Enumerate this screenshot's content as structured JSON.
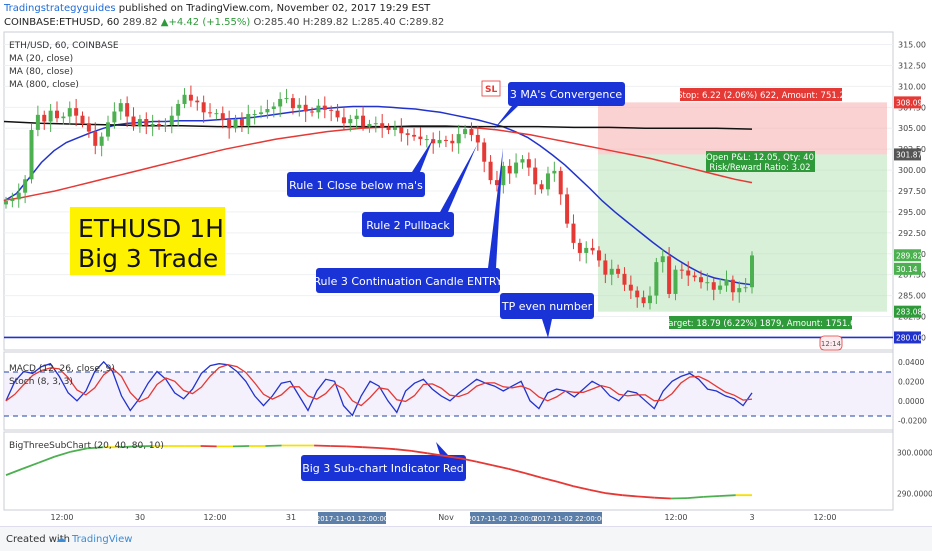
{
  "header": {
    "publisher": "Tradingstrategyguides",
    "published_text": "published on TradingView.com, November 02, 2017 19:29 EST",
    "symbol_line": "COINBASE:ETHUSD, 60",
    "last": "289.82",
    "change": "+4.42 (+1.55%)",
    "open": "O:285.40",
    "high": "H:289.82",
    "low": "L:285.40",
    "close": "C:289.82"
  },
  "chart_legend": {
    "symbol": "ETH/USD, 60, COINBASE",
    "ma20": "MA (20, close)",
    "ma80": "MA (80, close)",
    "ma800": "MA (800, close)"
  },
  "annotations": {
    "title_line1": "ETHUSD 1H",
    "title_line2": "Big 3 Trade",
    "sl": "SL",
    "ma_convergence": "3 MA's Convergence",
    "rule1": "Rule 1 Close below ma's",
    "rule2": "Rule 2 Pullback",
    "rule3": "Rule 3 Continuation Candle ENTRY",
    "tp": "TP even number",
    "big3_sub": "Big 3 Sub-chart Indicator Red",
    "stop_label": "Stop: 6.22 (2.06%) 622, Amount: 751.2",
    "pnl_line1": "Open P&L: 12.05, Qty: 40",
    "pnl_line2": "Risk/Reward Ratio: 3.02",
    "target_label": "Target: 18.79 (6.22%) 1879, Amount: 1751.6",
    "small_label": "12:14"
  },
  "price_axis": {
    "ticks": [
      "315.00",
      "312.50",
      "310.00",
      "307.50",
      "305.00",
      "302.50",
      "300.00",
      "297.50",
      "295.00",
      "292.50",
      "290.00",
      "287.50",
      "285.00",
      "282.50",
      "280.00"
    ],
    "tags": {
      "stop": "308.09",
      "entry": "301.87",
      "last": "289.82",
      "alt": "30.14",
      "target": "283.08",
      "tp": "280.00"
    }
  },
  "time_axis": {
    "ticks": [
      "12:00",
      "30",
      "12:00",
      "31",
      "Nov",
      "12:00",
      "3",
      "12:00"
    ],
    "highlight": [
      "2017-11-01 12:00:00",
      "2017-11-02 12:00:00",
      "2017-11-02 22:00:00"
    ]
  },
  "oscillator": {
    "legend1": "MACD (12, 26, close, 9)",
    "legend2": "Stoch (8, 3, 3)",
    "ticks": [
      "0.0400",
      "0.0200",
      "0.0000",
      "-0.0200"
    ]
  },
  "subchart": {
    "legend": "BigThreeSubChart (20, 40, 80, 10)",
    "ticks": [
      "300.0000",
      "290.0000"
    ]
  },
  "footer": {
    "created_with": "Created with",
    "brand": "TradingView"
  },
  "colors": {
    "up": "#26a69a",
    "up_fill": "#4caf50",
    "down": "#e53935",
    "ma20": "#2233cc",
    "ma80": "#e53935",
    "ma800": "#111111",
    "callout": "#1a33d6",
    "title_bg": "#fff200"
  },
  "chart_data": {
    "type": "line",
    "title": "ETHUSD 1H Big 3 Trade",
    "ylim": [
      278.5,
      316.5
    ],
    "price_series": [
      {
        "name": "ETH/USD",
        "values": [
          296.3,
          296.5,
          297.3,
          298.9,
          304.8,
          306.6,
          305.8,
          307.1,
          306.2,
          306.4,
          307.4,
          306.5,
          305.6,
          304.6,
          302.9,
          304.0,
          305.7,
          307.0,
          308.0,
          306.4,
          305.2,
          306.1,
          305.3,
          305.5,
          305.3,
          305.4,
          306.5,
          307.9,
          309.0,
          308.3,
          308.1,
          306.9,
          306.8,
          306.8,
          306.0,
          305.0,
          306.1,
          305.3,
          306.7,
          306.7,
          306.9,
          307.3,
          307.6,
          308.5,
          308.6,
          307.4,
          307.8,
          307.0,
          306.9,
          307.7,
          307.2,
          307.1,
          306.3,
          305.6,
          306.1,
          306.5,
          305.2,
          305.5,
          305.6,
          305.1,
          304.8,
          305.1,
          304.4,
          304.2,
          304.0,
          303.7,
          303.7,
          303.2,
          303.6,
          303.5,
          303.2,
          304.3,
          304.9,
          304.2,
          303.3,
          301.0,
          298.8,
          298.2,
          300.5,
          299.6,
          300.9,
          301.3,
          300.3,
          298.3,
          297.7,
          299.6,
          299.9,
          297.1,
          293.6,
          291.3,
          290.1,
          290.7,
          290.4,
          289.2,
          287.5,
          288.2,
          287.6,
          286.3,
          285.6,
          284.8,
          284.1,
          285.0,
          289.0,
          289.7,
          285.2,
          288.1,
          288.0,
          287.4,
          287.2,
          286.6,
          286.6,
          285.7,
          286.2,
          286.9,
          285.4,
          285.9,
          286.0,
          289.8
        ]
      },
      {
        "name": "MA (20, close)",
        "values": [
          296.3,
          297.2,
          299.0,
          300.9,
          302.3,
          303.3,
          303.9,
          304.5,
          305.0,
          305.4,
          305.6,
          305.7,
          305.8,
          305.8,
          305.9,
          305.9,
          305.9,
          306.0,
          306.1,
          306.2,
          306.3,
          306.5,
          306.7,
          306.9,
          307.1,
          307.3,
          307.4,
          307.5,
          307.6,
          307.6,
          307.6,
          307.5,
          307.4,
          307.3,
          307.1,
          306.9,
          306.6,
          306.3,
          306.0,
          305.6,
          305.2,
          304.6,
          303.9,
          302.9,
          301.8,
          300.6,
          299.2,
          297.8,
          296.3,
          295.0,
          293.8,
          292.6,
          291.4,
          290.3,
          289.3,
          288.4,
          287.6,
          287.1,
          286.8,
          286.5,
          286.3
        ]
      },
      {
        "name": "MA (80, close)",
        "values": [
          296.4,
          296.7,
          297.1,
          297.5,
          298.0,
          298.5,
          299.0,
          299.5,
          300.0,
          300.5,
          301.0,
          301.5,
          302.0,
          302.5,
          302.9,
          303.3,
          303.7,
          304.0,
          304.3,
          304.6,
          304.8,
          305.0,
          305.1,
          305.2,
          305.3,
          305.3,
          305.3,
          305.2,
          305.0,
          304.8,
          304.5,
          304.2,
          303.8,
          303.4,
          303.0,
          302.6,
          302.2,
          301.8,
          301.4,
          300.9,
          300.4,
          299.9,
          299.4,
          298.9,
          298.5
        ]
      },
      {
        "name": "MA (800, close)",
        "values": [
          305.8,
          305.6,
          305.5,
          305.4,
          305.3,
          305.3,
          305.2,
          305.2,
          305.2,
          305.2,
          305.2,
          305.2,
          305.2,
          305.2,
          305.2,
          305.2,
          305.1,
          305.1,
          305.0,
          305.0,
          305.0,
          304.9
        ]
      }
    ],
    "trade": {
      "stop": 308.09,
      "entry": 301.87,
      "target": 283.08,
      "tp_level": 280.0
    },
    "stoch": {
      "name": "Stoch (8, 3, 3)",
      "k": [
        0.0,
        0.02,
        0.03,
        0.028,
        0.035,
        0.038,
        0.025,
        0.008,
        0.0,
        0.01,
        0.03,
        0.04,
        0.03,
        0.005,
        -0.01,
        0.002,
        0.018,
        0.03,
        0.022,
        0.008,
        0.002,
        0.012,
        0.028,
        0.036,
        0.038,
        0.037,
        0.03,
        0.02,
        0.005,
        -0.005,
        0.005,
        0.018,
        0.02,
        0.005,
        -0.01,
        0.01,
        0.022,
        0.02,
        -0.005,
        -0.015,
        0.005,
        0.02,
        0.015,
        0.0,
        -0.012,
        0.01,
        0.018,
        0.022,
        0.012,
        0.005,
        0.0,
        0.008,
        0.015,
        0.022,
        0.018,
        0.015,
        0.01,
        0.015,
        0.02,
        0.0,
        -0.008,
        0.008,
        0.012,
        0.01,
        0.004,
        0.012,
        0.02,
        0.015,
        0.005,
        0.0,
        0.01,
        0.008,
        0.0,
        -0.008,
        0.01,
        0.02,
        0.025,
        0.028,
        0.022,
        0.012,
        0.01,
        0.005,
        0.002,
        -0.005,
        0.008
      ]
    },
    "subchart": {
      "name": "BigThreeSubChart (20, 40, 80, 10)",
      "values": [
        294.5,
        296.0,
        297.5,
        299.0,
        300.2,
        301.0,
        301.3,
        301.3,
        301.5,
        301.6,
        301.6,
        301.6,
        301.6,
        301.5,
        301.5,
        301.6,
        301.6,
        301.7,
        301.7,
        301.7,
        301.6,
        301.5,
        301.3,
        301.1,
        300.8,
        300.4,
        299.8,
        299.2,
        298.6,
        297.8,
        296.9,
        296.0,
        295.0,
        293.9,
        292.9,
        291.8,
        290.9,
        290.1,
        289.6,
        289.3,
        289.0,
        288.8,
        288.9,
        289.2,
        289.4,
        289.6,
        289.6
      ]
    }
  }
}
